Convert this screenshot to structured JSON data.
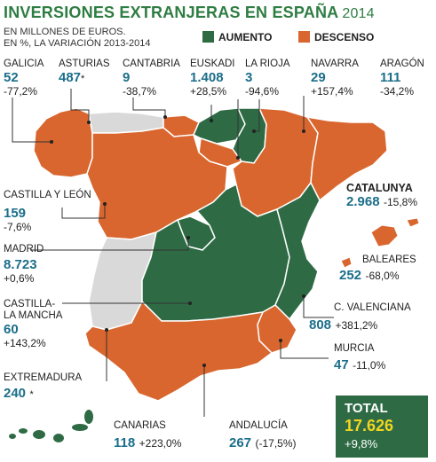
{
  "header": {
    "title": "INVERSIONES EXTRANJERAS EN ESPAÑA",
    "year": "2014",
    "subtitle_1": "EN MILLONES DE EUROS.",
    "subtitle_2": "EN %, LA VARIACIÓN 2013-2014"
  },
  "legend": {
    "increase": {
      "label": "AUMENTO",
      "color": "#2e6b45"
    },
    "decrease": {
      "label": "DESCENSO",
      "color": "#d9662e"
    }
  },
  "colors": {
    "no_data": "#d9d9d9",
    "value_text": "#1b6e8a"
  },
  "regions": {
    "galicia": {
      "name": "GALICIA",
      "value": "52",
      "change": "-77,2%"
    },
    "asturias": {
      "name": "ASTURIAS",
      "value": "487",
      "note": "*"
    },
    "cantabria": {
      "name": "CANTABRIA",
      "value": "9",
      "change": "-38,7%"
    },
    "euskadi": {
      "name": "EUSKADI",
      "value": "1.408",
      "change": "+28,5%"
    },
    "rioja": {
      "name": "LA RIOJA",
      "value": "3",
      "change": "-94,6%"
    },
    "navarra": {
      "name": "NAVARRA",
      "value": "29",
      "change": "+157,4%"
    },
    "aragon": {
      "name": "ARAGÓN",
      "value": "111",
      "change": "-34,2%"
    },
    "cyl": {
      "name": "CASTILLA Y LEÓN",
      "value": "159",
      "change": "-7,6%"
    },
    "catalunya": {
      "name": "CATALUNYA",
      "value": "2.968",
      "change": "-15,8%"
    },
    "madrid": {
      "name": "MADRID",
      "value": "8.723",
      "change": "+0,6%"
    },
    "baleares": {
      "name": "BALEARES",
      "value": "252",
      "change": "-68,0%"
    },
    "clm": {
      "name_1": "CASTILLA-",
      "name_2": "LA MANCHA",
      "value": "60",
      "change": "+143,2%"
    },
    "valencia": {
      "name": "C. VALENCIANA",
      "value": "808",
      "change": "+381,2%"
    },
    "extremadura": {
      "name": "EXTREMADURA",
      "value": "240",
      "note": "*"
    },
    "murcia": {
      "name": "MURCIA",
      "value": "47",
      "change": "-11,0%"
    },
    "canarias": {
      "name": "CANARIAS",
      "value": "118",
      "change": "+223,0%"
    },
    "andalucia": {
      "name": "ANDALUCÍA",
      "value": "267",
      "change": "(-17,5%)"
    }
  },
  "total": {
    "label": "TOTAL",
    "value": "17.626",
    "change": "+9,8%"
  }
}
